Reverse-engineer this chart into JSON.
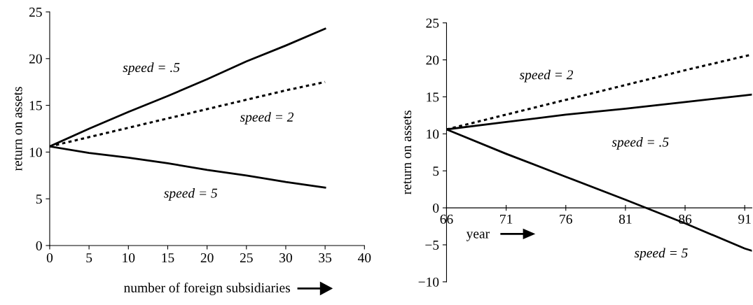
{
  "chart_data": [
    {
      "type": "line",
      "xlabel": "number of foreign subsidiaries",
      "ylabel": "return on assets",
      "x": [
        0,
        5,
        10,
        15,
        20,
        25,
        30,
        35
      ],
      "xlim": [
        0,
        40
      ],
      "xticks": [
        0,
        5,
        10,
        15,
        20,
        25,
        30,
        35,
        40
      ],
      "ylim": [
        0,
        25
      ],
      "yticks": [
        0,
        5,
        10,
        15,
        20,
        25
      ],
      "grid": false,
      "legend": false,
      "series": [
        {
          "color": "#000000",
          "line_style": "solid",
          "values": [
            10.6,
            12.5,
            14.3,
            16.0,
            17.8,
            19.7,
            21.4,
            23.2
          ]
        },
        {
          "color": "#000000",
          "line_style": "dotted",
          "values": [
            10.6,
            11.6,
            12.6,
            13.6,
            14.6,
            15.6,
            16.6,
            17.5
          ]
        },
        {
          "color": "#000000",
          "line_style": "solid",
          "values": [
            10.6,
            9.9,
            9.4,
            8.8,
            8.1,
            7.5,
            6.8,
            6.2
          ]
        }
      ],
      "annotations": [
        "speed = .5",
        "speed = 2",
        "speed = 5"
      ]
    },
    {
      "type": "line",
      "xlabel": "year",
      "ylabel": "return on assets",
      "x": [
        66,
        71,
        76,
        81,
        86,
        91,
        91.6
      ],
      "xlim": [
        66,
        91.6
      ],
      "xticks": [
        66,
        71,
        76,
        81,
        86,
        91
      ],
      "ylim": [
        -10,
        25
      ],
      "yticks": [
        {
          "value": -10,
          "label": "−10"
        },
        {
          "value": -5,
          "label": "−5"
        },
        0,
        5,
        10,
        15,
        20,
        25
      ],
      "grid": false,
      "legend": false,
      "series": [
        {
          "color": "#000000",
          "line_style": "dotted",
          "values": [
            10.6,
            12.6,
            14.6,
            16.6,
            18.6,
            20.5,
            20.7
          ]
        },
        {
          "color": "#000000",
          "line_style": "solid",
          "values": [
            10.6,
            11.6,
            12.6,
            13.4,
            14.3,
            15.2,
            15.3
          ]
        },
        {
          "color": "#000000",
          "line_style": "solid",
          "values": [
            10.6,
            7.3,
            4.2,
            1.1,
            -2.1,
            -5.5,
            -5.8
          ]
        }
      ],
      "annotations": [
        "speed = 2",
        "speed = .5",
        "speed = 5"
      ]
    }
  ]
}
